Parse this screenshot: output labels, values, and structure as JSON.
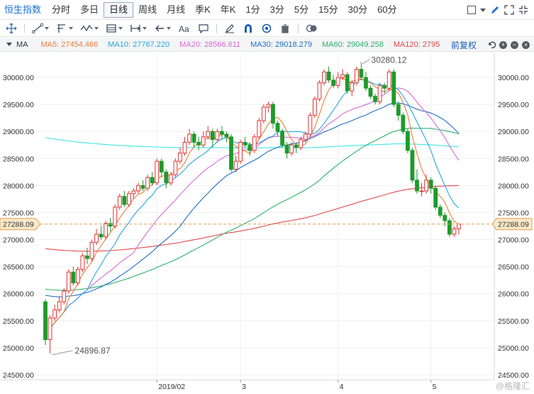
{
  "topbar": {
    "product_name": "恒生指数",
    "periods": [
      "分时",
      "多日",
      "日线",
      "周线",
      "月线",
      "季K",
      "年K",
      "1分",
      "3分",
      "5分",
      "15分",
      "30分",
      "60分"
    ],
    "active_period": "日线"
  },
  "ma_bar": {
    "label": "MA",
    "items": [
      {
        "text": "MA5: 27454.466",
        "color": "#f07c3c"
      },
      {
        "text": "MA10: 27767.220",
        "color": "#2aa6dc"
      },
      {
        "text": "MA20: 28566.611",
        "color": "#d86ad8"
      },
      {
        "text": "MA30: 29018.279",
        "color": "#1f70c4"
      },
      {
        "text": "MA60: 29049.258",
        "color": "#2bb06c"
      },
      {
        "text": "MA120: 2795",
        "color": "#e24a4a"
      }
    ],
    "adjust_label": "前复权"
  },
  "colors": {
    "up": "#e03434",
    "down": "#1e9a2a",
    "ma5": "#f07c3c",
    "ma10": "#2aa6dc",
    "ma20": "#d86ad8",
    "ma30": "#1f70c4",
    "ma60": "#2bb06c",
    "ma120": "#e24a4a",
    "ma250": "#3ee6e6"
  },
  "chart_data": {
    "type": "candlestick",
    "y_ticks": [
      "30000.00",
      "29500.00",
      "29000.00",
      "28500.00",
      "28000.00",
      "27500.00",
      "27000.00",
      "26500.00",
      "26000.00",
      "25500.00",
      "25000.00",
      "24500.00"
    ],
    "ylim": [
      24500,
      30600
    ],
    "x_labels": [
      {
        "label": "2019/02",
        "index": 24
      },
      {
        "label": "3",
        "index": 42
      },
      {
        "label": "4",
        "index": 63
      },
      {
        "label": "5",
        "index": 83
      }
    ],
    "last_price": "27288.09",
    "last_price_value": 27288.09,
    "high_annotation": {
      "text": "30280.12",
      "index": 68,
      "value": 30280.12
    },
    "low_annotation": {
      "text": "24896.87",
      "index": 1,
      "value": 24896.87
    },
    "candles": [
      [
        25850,
        25150,
        25900,
        25050
      ],
      [
        25150,
        25550,
        25600,
        24897
      ],
      [
        25550,
        25700,
        25800,
        25500
      ],
      [
        25700,
        25850,
        25950,
        25650
      ],
      [
        25850,
        26050,
        26100,
        25800
      ],
      [
        26050,
        26400,
        26450,
        26000
      ],
      [
        26400,
        26200,
        26500,
        26150
      ],
      [
        26200,
        26450,
        26500,
        26150
      ],
      [
        26450,
        26700,
        26750,
        26400
      ],
      [
        26700,
        26650,
        26850,
        26550
      ],
      [
        26650,
        26950,
        27000,
        26600
      ],
      [
        26950,
        27100,
        27200,
        26900
      ],
      [
        27100,
        27050,
        27250,
        27000
      ],
      [
        27050,
        27300,
        27350,
        27000
      ],
      [
        27300,
        27250,
        27400,
        27150
      ],
      [
        27250,
        27600,
        27650,
        27200
      ],
      [
        27600,
        27800,
        27850,
        27550
      ],
      [
        27800,
        27650,
        27900,
        27600
      ],
      [
        27650,
        27850,
        27900,
        27600
      ],
      [
        27850,
        27900,
        27950,
        27750
      ],
      [
        27900,
        28000,
        28050,
        27850
      ],
      [
        28000,
        27950,
        28100,
        27900
      ],
      [
        27950,
        28150,
        28200,
        27900
      ],
      [
        28150,
        28050,
        28250,
        28000
      ],
      [
        28050,
        28450,
        28500,
        28000
      ],
      [
        28450,
        28250,
        28500,
        28150
      ],
      [
        28250,
        28050,
        28300,
        27950
      ],
      [
        28050,
        28200,
        28250,
        28000
      ],
      [
        28200,
        28450,
        28500,
        28150
      ],
      [
        28450,
        28600,
        28700,
        28400
      ],
      [
        28600,
        28800,
        28900,
        28550
      ],
      [
        28800,
        28950,
        29050,
        28750
      ],
      [
        28950,
        28800,
        29000,
        28700
      ],
      [
        28800,
        28750,
        28900,
        28650
      ],
      [
        28750,
        28900,
        29000,
        28700
      ],
      [
        28900,
        29000,
        29100,
        28850
      ],
      [
        29000,
        28850,
        29050,
        28700
      ],
      [
        28850,
        29000,
        29050,
        28800
      ],
      [
        29000,
        28950,
        29100,
        28850
      ],
      [
        28950,
        28900,
        29000,
        28800
      ],
      [
        28900,
        28300,
        28950,
        28250
      ],
      [
        28300,
        28450,
        28550,
        28250
      ],
      [
        28450,
        28800,
        28850,
        28400
      ],
      [
        28800,
        28750,
        28900,
        28700
      ],
      [
        28750,
        28650,
        28800,
        28550
      ],
      [
        28650,
        28900,
        28950,
        28600
      ],
      [
        28900,
        29200,
        29250,
        28850
      ],
      [
        29200,
        29450,
        29500,
        29150
      ],
      [
        29450,
        29500,
        29550,
        29350
      ],
      [
        29500,
        29150,
        29550,
        29050
      ],
      [
        29150,
        29000,
        29200,
        28900
      ],
      [
        29000,
        28750,
        29050,
        28700
      ],
      [
        28750,
        28600,
        28800,
        28500
      ],
      [
        28600,
        28750,
        28800,
        28550
      ],
      [
        28750,
        28700,
        28800,
        28600
      ],
      [
        28700,
        28850,
        28900,
        28650
      ],
      [
        28850,
        28950,
        29000,
        28800
      ],
      [
        28950,
        29300,
        29350,
        28900
      ],
      [
        29300,
        29600,
        29650,
        29250
      ],
      [
        29600,
        29900,
        29950,
        29550
      ],
      [
        29900,
        30100,
        30150,
        29850
      ],
      [
        30100,
        29950,
        30200,
        29900
      ],
      [
        29950,
        29850,
        30050,
        29800
      ],
      [
        29850,
        30000,
        30100,
        29800
      ],
      [
        30000,
        30050,
        30150,
        29950
      ],
      [
        30050,
        29750,
        30100,
        29700
      ],
      [
        29750,
        29900,
        29950,
        29650
      ],
      [
        29900,
        30150,
        30200,
        29850
      ],
      [
        30150,
        30000,
        30280,
        29950
      ],
      [
        30000,
        29800,
        30100,
        29750
      ],
      [
        29800,
        29650,
        29850,
        29600
      ],
      [
        29650,
        29550,
        29700,
        29500
      ],
      [
        29550,
        29850,
        29900,
        29500
      ],
      [
        29850,
        29800,
        29900,
        29700
      ],
      [
        29800,
        30100,
        30150,
        29750
      ],
      [
        30100,
        29500,
        30150,
        29450
      ],
      [
        29500,
        29300,
        29550,
        29200
      ],
      [
        29300,
        29000,
        29350,
        28950
      ],
      [
        29000,
        28650,
        29050,
        28600
      ],
      [
        28650,
        28100,
        28700,
        28050
      ],
      [
        28100,
        27900,
        28300,
        27850
      ],
      [
        27900,
        27900,
        28050,
        27800
      ],
      [
        27900,
        28100,
        28200,
        27850
      ],
      [
        28100,
        27950,
        28150,
        27850
      ],
      [
        27950,
        27600,
        28000,
        27550
      ],
      [
        27600,
        27450,
        27650,
        27400
      ],
      [
        27450,
        27350,
        27500,
        27250
      ],
      [
        27350,
        27100,
        27400,
        27050
      ],
      [
        27100,
        27200,
        27250,
        27050
      ],
      [
        27200,
        27288.09,
        27300,
        27100
      ]
    ]
  }
}
